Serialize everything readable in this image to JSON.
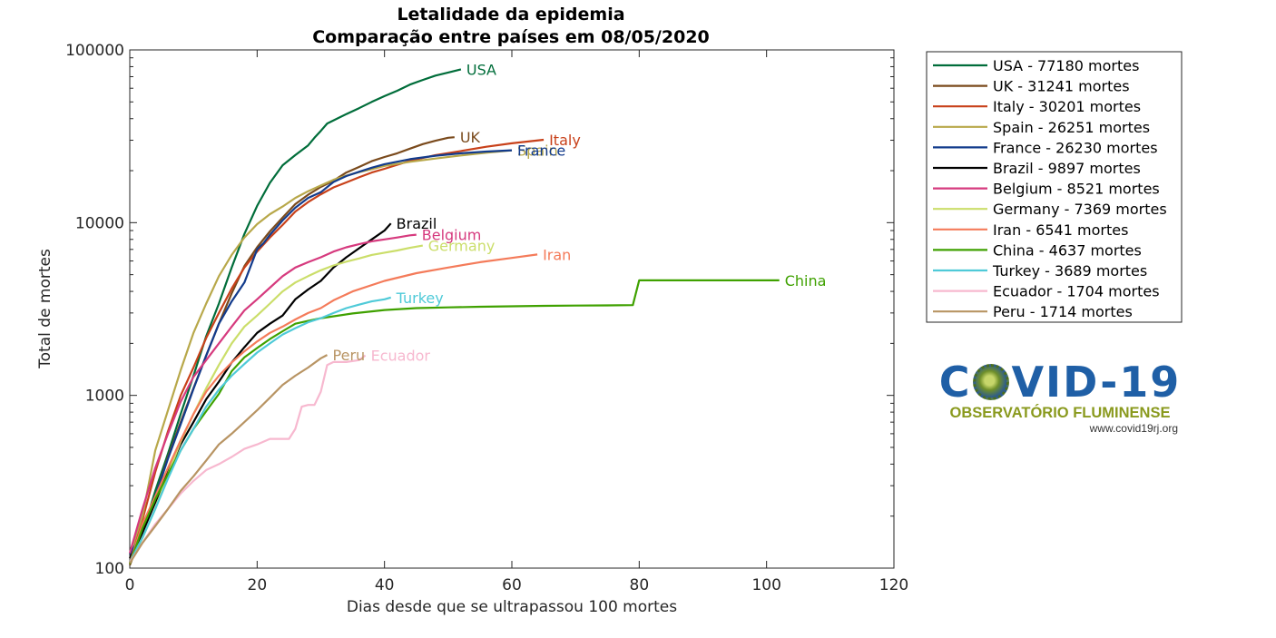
{
  "chart_data": {
    "type": "line",
    "title": "Letalidade da epidemia",
    "subtitle": "Comparação entre países em 08/05/2020",
    "xlabel": "Dias desde que se ultrapassou 100 mortes",
    "ylabel": "Total de mortes",
    "xlim": [
      0,
      120
    ],
    "ylim": [
      100,
      100000
    ],
    "yscale": "log",
    "xticks": [
      "0",
      "20",
      "40",
      "60",
      "80",
      "100",
      "120"
    ],
    "yticks": [
      "100",
      "1000",
      "10000",
      "100000"
    ],
    "legend_placement": "outside-right",
    "series": [
      {
        "name": "USA",
        "legend": "USA - 77180 mortes",
        "color": "#006d3a",
        "x": [
          0,
          2,
          4,
          6,
          8,
          10,
          12,
          14,
          16,
          18,
          20,
          22,
          24,
          26,
          28,
          29,
          30,
          31,
          34,
          36,
          38,
          40,
          42,
          44,
          46,
          48,
          50,
          52
        ],
        "y": [
          109,
          160,
          280,
          460,
          780,
          1300,
          2200,
          3400,
          5500,
          8600,
          12500,
          17000,
          21500,
          24600,
          28000,
          31000,
          34000,
          37500,
          42500,
          46000,
          50000,
          54000,
          58000,
          63000,
          67000,
          71000,
          74000,
          77180
        ]
      },
      {
        "name": "UK",
        "legend": "UK - 31241 mortes",
        "color": "#7a4a1c",
        "x": [
          0,
          2,
          4,
          6,
          8,
          10,
          12,
          14,
          16,
          18,
          20,
          22,
          24,
          26,
          28,
          30,
          32,
          34,
          36,
          38,
          40,
          42,
          44,
          46,
          48,
          50,
          51
        ],
        "y": [
          104,
          160,
          260,
          440,
          700,
          1100,
          1700,
          2600,
          3900,
          5600,
          7200,
          8900,
          10700,
          12800,
          14500,
          16100,
          17500,
          19500,
          21000,
          22700,
          24000,
          25200,
          26800,
          28500,
          29800,
          31000,
          31241
        ]
      },
      {
        "name": "Italy",
        "legend": "Italy - 30201 mortes",
        "color": "#c8411a",
        "x": [
          0,
          2,
          4,
          6,
          8,
          10,
          12,
          14,
          16,
          18,
          20,
          22,
          24,
          26,
          28,
          30,
          32,
          34,
          36,
          38,
          40,
          44,
          48,
          52,
          56,
          60,
          65
        ],
        "y": [
          107,
          190,
          360,
          620,
          1000,
          1450,
          2150,
          3000,
          4150,
          5500,
          6800,
          8200,
          9700,
          11600,
          13150,
          14600,
          16000,
          17100,
          18300,
          19500,
          20500,
          22800,
          24600,
          26000,
          27500,
          28800,
          30201
        ]
      },
      {
        "name": "Spain",
        "legend": "Spain - 26251 mortes",
        "color": "#b8a84a",
        "x": [
          0,
          2,
          4,
          6,
          8,
          10,
          12,
          14,
          16,
          18,
          20,
          22,
          24,
          26,
          28,
          30,
          32,
          34,
          36,
          38,
          40,
          44,
          48,
          52,
          56,
          60
        ],
        "y": [
          120,
          200,
          480,
          820,
          1400,
          2300,
          3400,
          4900,
          6500,
          8200,
          9800,
          11200,
          12400,
          13900,
          15200,
          16400,
          17700,
          18700,
          19600,
          20400,
          21300,
          22500,
          23500,
          24500,
          25400,
          26251
        ]
      },
      {
        "name": "France",
        "legend": "France - 26230 mortes",
        "color": "#123b8c",
        "x": [
          0,
          2,
          4,
          6,
          8,
          10,
          12,
          14,
          16,
          18,
          20,
          21,
          22,
          24,
          26,
          28,
          30,
          32,
          34,
          36,
          38,
          40,
          44,
          48,
          52,
          56,
          60
        ],
        "y": [
          120,
          160,
          260,
          430,
          680,
          1090,
          1700,
          2600,
          3500,
          4500,
          7000,
          7600,
          8500,
          10300,
          12200,
          13900,
          15000,
          17200,
          18600,
          19700,
          20800,
          21800,
          23300,
          24400,
          25200,
          25800,
          26230
        ]
      },
      {
        "name": "Brazil",
        "legend": "Brazil - 9897 mortes",
        "color": "#000000",
        "x": [
          0,
          2,
          4,
          6,
          8,
          10,
          12,
          14,
          16,
          18,
          20,
          22,
          24,
          26,
          28,
          30,
          32,
          34,
          36,
          38,
          40,
          41
        ],
        "y": [
          114,
          160,
          240,
          360,
          520,
          700,
          950,
          1200,
          1550,
          1900,
          2300,
          2600,
          2900,
          3600,
          4100,
          4600,
          5500,
          6300,
          7100,
          8000,
          9000,
          9897
        ]
      },
      {
        "name": "Belgium",
        "legend": "Belgium - 8521 mortes",
        "color": "#d63a7e",
        "x": [
          0,
          2,
          4,
          6,
          8,
          10,
          12,
          14,
          16,
          18,
          20,
          22,
          24,
          26,
          28,
          30,
          32,
          34,
          36,
          38,
          40,
          42,
          44,
          45
        ],
        "y": [
          122,
          220,
          380,
          600,
          920,
          1280,
          1600,
          2000,
          2500,
          3100,
          3600,
          4200,
          4900,
          5500,
          5900,
          6300,
          6800,
          7200,
          7500,
          7800,
          8000,
          8200,
          8450,
          8521
        ]
      },
      {
        "name": "Germany",
        "legend": "Germany - 7369 mortes",
        "color": "#cbde6a",
        "x": [
          0,
          2,
          4,
          6,
          8,
          10,
          12,
          14,
          16,
          18,
          20,
          22,
          24,
          26,
          28,
          30,
          32,
          34,
          36,
          38,
          40,
          42,
          44,
          46
        ],
        "y": [
          107,
          150,
          220,
          350,
          540,
          780,
          1100,
          1500,
          2000,
          2500,
          2900,
          3400,
          4000,
          4500,
          4900,
          5300,
          5650,
          5950,
          6200,
          6500,
          6700,
          6900,
          7150,
          7369
        ]
      },
      {
        "name": "Iran",
        "legend": "Iran - 6541 mortes",
        "color": "#f47b5a",
        "x": [
          0,
          2,
          4,
          6,
          8,
          10,
          12,
          14,
          16,
          18,
          20,
          22,
          24,
          26,
          28,
          30,
          32,
          35,
          40,
          45,
          50,
          55,
          60,
          64
        ],
        "y": [
          107,
          180,
          260,
          380,
          550,
          780,
          1050,
          1300,
          1550,
          1800,
          2050,
          2300,
          2500,
          2750,
          3000,
          3200,
          3550,
          4000,
          4600,
          5100,
          5500,
          5900,
          6250,
          6541
        ]
      },
      {
        "name": "China",
        "legend": "China - 4637 mortes",
        "color": "#3fa100",
        "x": [
          0,
          2,
          4,
          6,
          8,
          10,
          12,
          14,
          16,
          18,
          20,
          22,
          24,
          26,
          28,
          30,
          35,
          40,
          45,
          50,
          55,
          60,
          65,
          70,
          75,
          79,
          80,
          85,
          90,
          95,
          102
        ],
        "y": [
          106,
          170,
          250,
          350,
          480,
          640,
          810,
          1020,
          1380,
          1660,
          1880,
          2120,
          2350,
          2600,
          2700,
          2800,
          2980,
          3120,
          3200,
          3230,
          3260,
          3280,
          3300,
          3310,
          3320,
          3330,
          4632,
          4632,
          4633,
          4634,
          4637
        ]
      },
      {
        "name": "Turkey",
        "legend": "Turkey - 3689 mortes",
        "color": "#4fcad8",
        "x": [
          0,
          2,
          4,
          6,
          8,
          10,
          12,
          14,
          16,
          18,
          20,
          22,
          24,
          26,
          28,
          30,
          32,
          34,
          36,
          38,
          40,
          41
        ],
        "y": [
          108,
          150,
          220,
          330,
          480,
          640,
          860,
          1080,
          1300,
          1520,
          1770,
          2000,
          2250,
          2450,
          2650,
          2800,
          3000,
          3200,
          3350,
          3500,
          3600,
          3689
        ]
      },
      {
        "name": "Ecuador",
        "legend": "Ecuador - 1704 mortes",
        "color": "#f7b8cf",
        "x": [
          0,
          2,
          4,
          6,
          8,
          10,
          12,
          14,
          16,
          18,
          20,
          22,
          24,
          25,
          26,
          27,
          28,
          29,
          30,
          31,
          32,
          34,
          36,
          37
        ],
        "y": [
          108,
          140,
          180,
          220,
          270,
          320,
          370,
          400,
          440,
          490,
          520,
          560,
          560,
          560,
          640,
          860,
          880,
          880,
          1050,
          1500,
          1560,
          1560,
          1600,
          1704
        ]
      },
      {
        "name": "Peru",
        "legend": "Peru - 1714 mortes",
        "color": "#b89463",
        "x": [
          0,
          2,
          4,
          6,
          8,
          10,
          12,
          14,
          16,
          18,
          20,
          22,
          24,
          26,
          28,
          30,
          31
        ],
        "y": [
          107,
          140,
          175,
          220,
          280,
          340,
          420,
          520,
          600,
          700,
          820,
          970,
          1150,
          1300,
          1450,
          1640,
          1714
        ]
      }
    ]
  }
}
